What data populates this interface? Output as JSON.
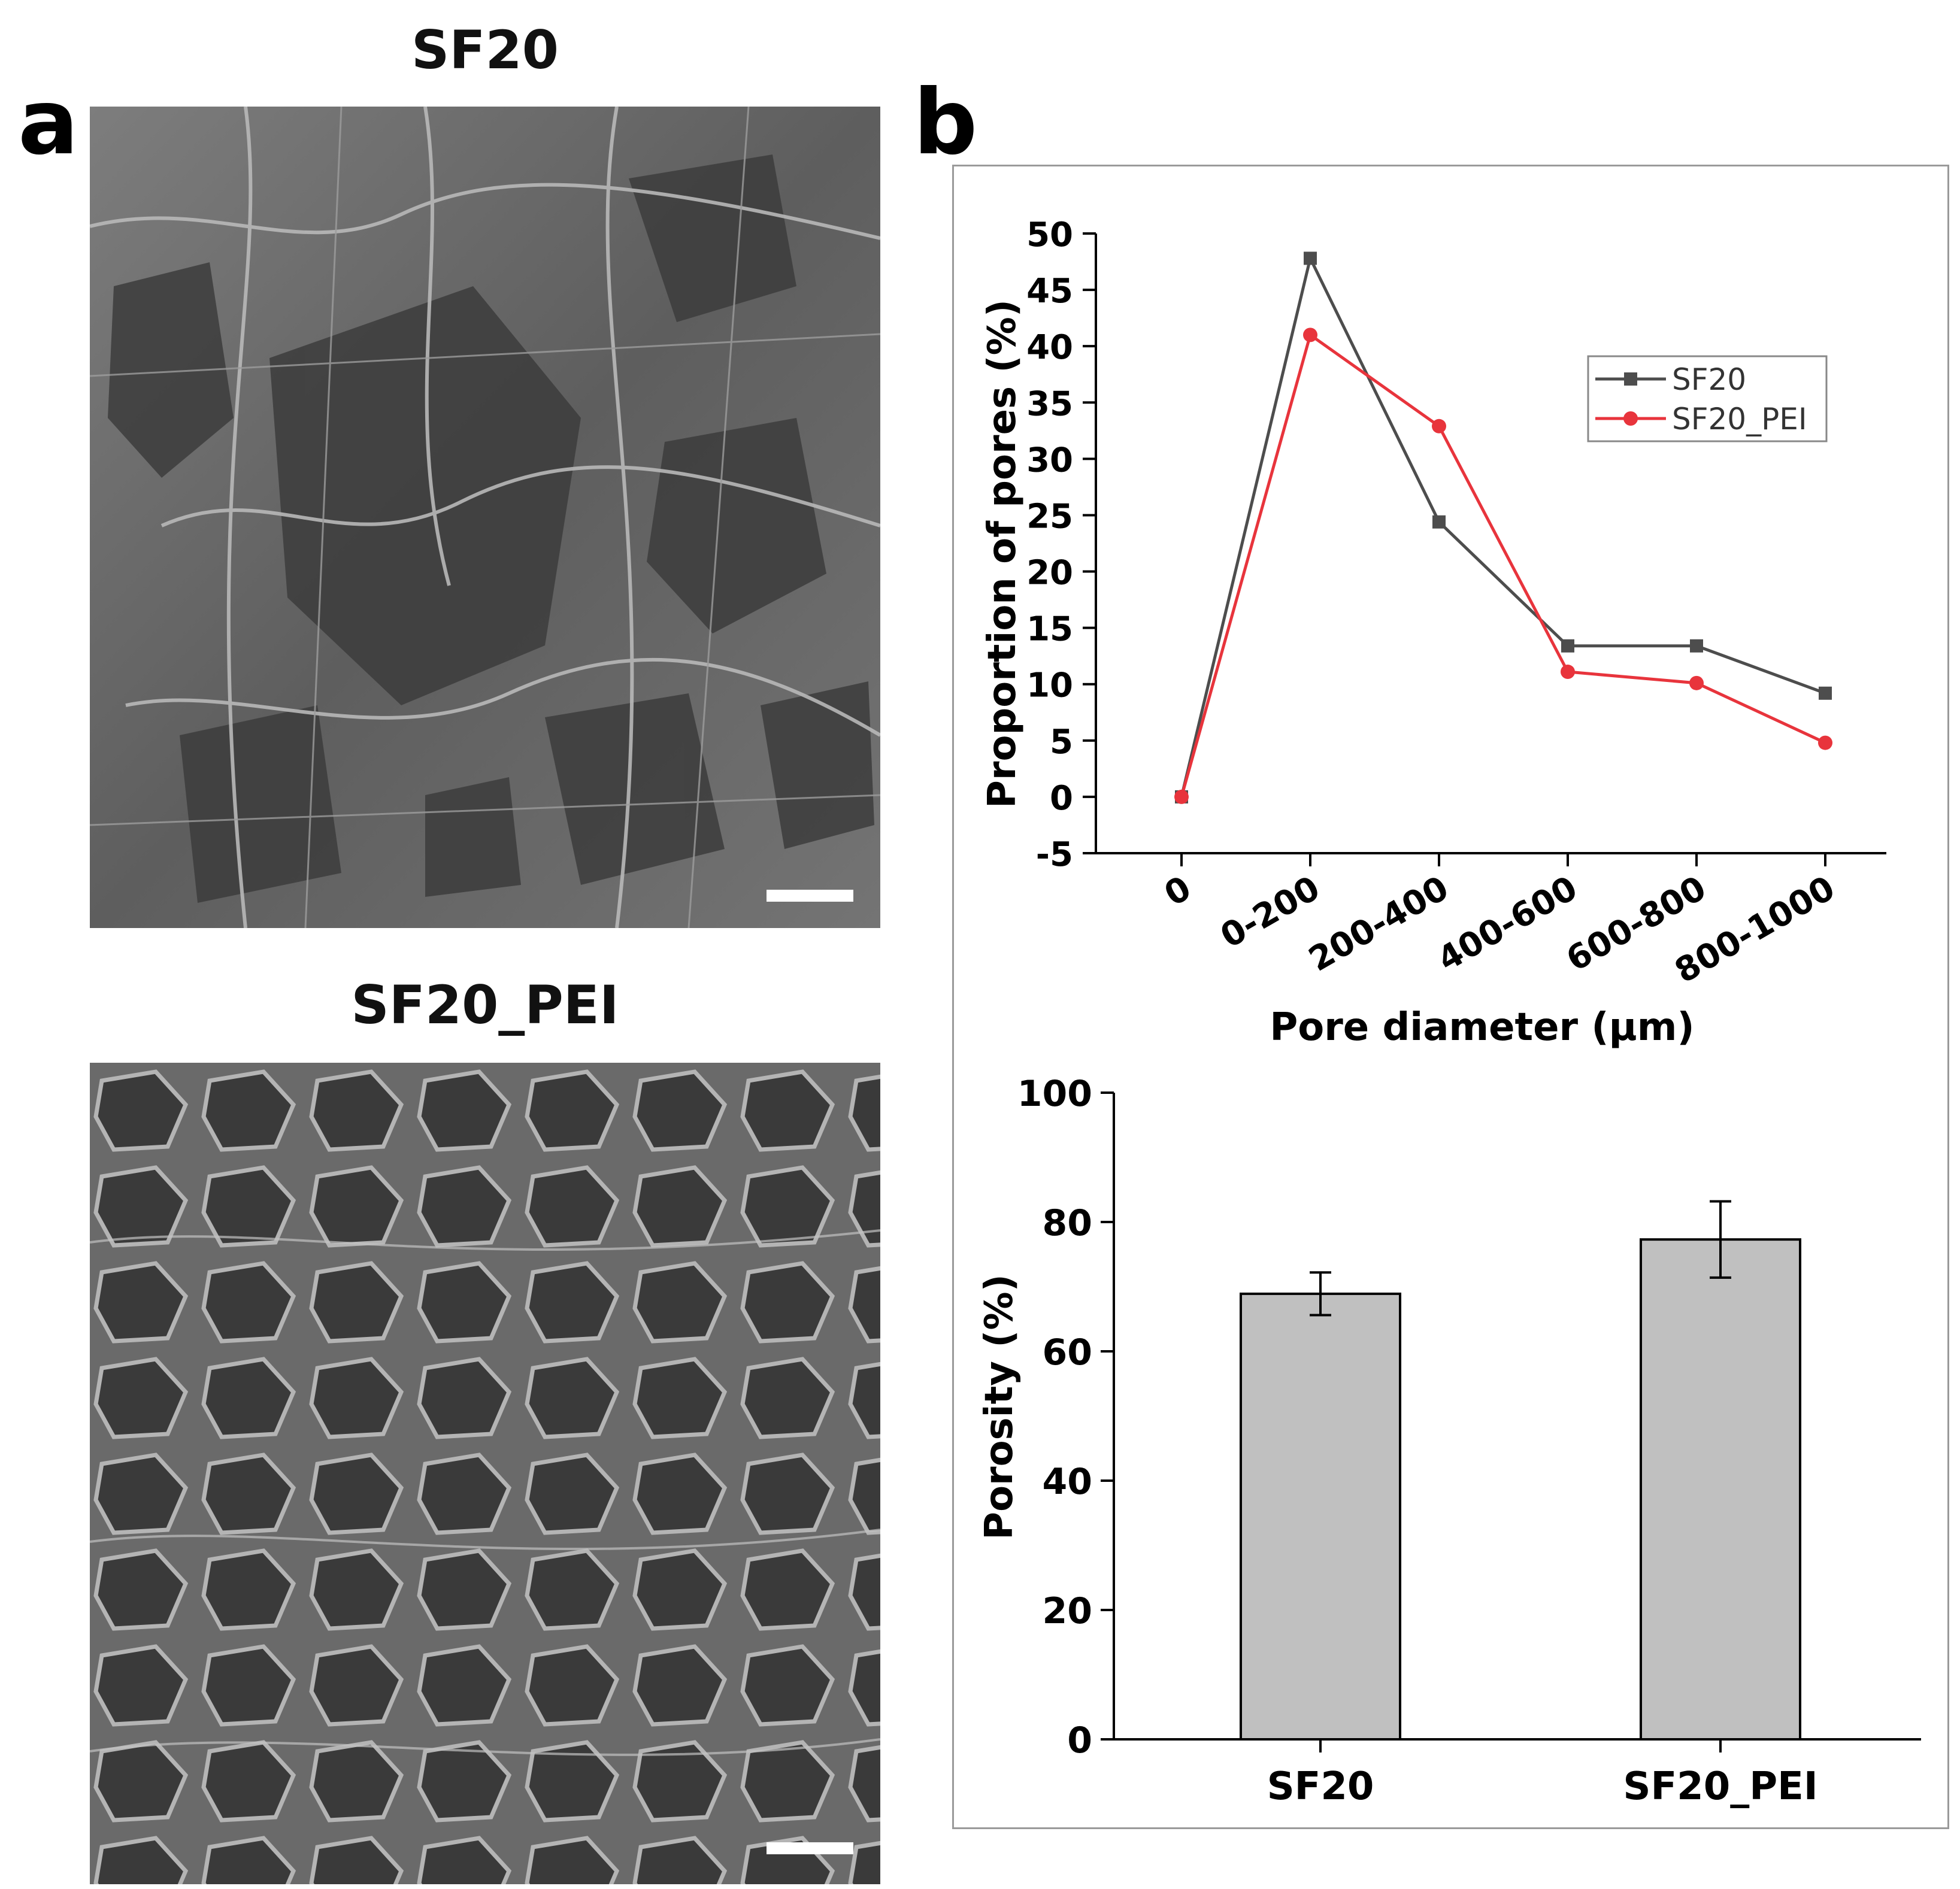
{
  "panel_a": {
    "letter": "a",
    "images": [
      {
        "title": "SF20"
      },
      {
        "title": "SF20_PEI"
      }
    ]
  },
  "panel_b": {
    "letter": "b"
  },
  "chart_data": [
    {
      "type": "line",
      "title": "",
      "xlabel": "Pore diameter (μm)",
      "ylabel": "Proportion of pores (%)",
      "categories": [
        "0",
        "0-200",
        "200-400",
        "400-600",
        "600-800",
        "800-1000"
      ],
      "ylim": [
        -5,
        50
      ],
      "yticks": [
        -5,
        0,
        5,
        10,
        15,
        20,
        25,
        30,
        35,
        40,
        45,
        50
      ],
      "legend_position": "top-right",
      "grid": false,
      "series": [
        {
          "name": "SF20",
          "marker": "square",
          "color": "#4d4d4d",
          "values": [
            0,
            47.8,
            24.4,
            13.4,
            13.4,
            9.2
          ]
        },
        {
          "name": "SF20_PEI",
          "marker": "circle",
          "color": "#e8343c",
          "values": [
            0,
            41.0,
            32.9,
            11.1,
            10.1,
            4.8
          ]
        }
      ]
    },
    {
      "type": "bar",
      "title": "",
      "xlabel": "",
      "ylabel": "Porosity (%)",
      "categories": [
        "SF20",
        "SF20_PEI"
      ],
      "values": [
        68.9,
        77.3
      ],
      "errors": [
        3.3,
        5.9
      ],
      "ylim": [
        0,
        100
      ],
      "yticks": [
        0,
        20,
        40,
        60,
        80,
        100
      ],
      "bar_color": "#c0c0c0",
      "grid": false
    }
  ]
}
